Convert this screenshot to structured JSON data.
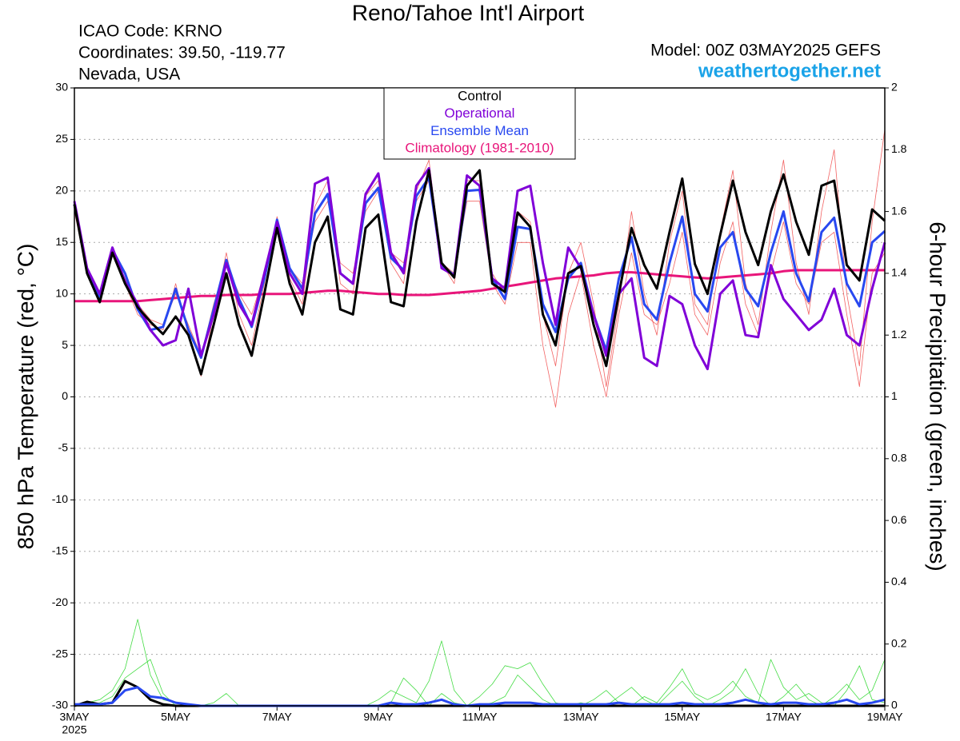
{
  "chart_data": {
    "type": "line",
    "title": "Reno/Tahoe Int'l Airport",
    "info_left": [
      "ICAO Code: KRNO",
      "Coordinates: 39.50, -119.77",
      "Nevada, USA"
    ],
    "model": "Model: 00Z 03MAY2025 GEFS",
    "source": "weathertogether.net",
    "ylabel": "850 hPa Temperature (red, °C)",
    "y2label": "6-hour Precipitation (green, inches)",
    "x_year": "2025",
    "x": [
      0,
      6,
      12,
      18,
      24,
      30,
      36,
      42,
      48,
      54,
      60,
      66,
      72,
      78,
      84,
      90,
      96,
      102,
      108,
      114,
      120,
      126,
      132,
      138,
      144,
      150,
      156,
      162,
      168,
      174,
      180,
      186,
      192,
      198,
      204,
      210,
      216,
      222,
      228,
      234,
      240,
      246,
      252,
      258,
      264,
      270,
      276,
      282,
      288,
      294,
      300,
      306,
      312,
      318,
      324,
      330,
      336,
      342,
      348,
      354,
      360,
      366,
      372,
      378,
      384
    ],
    "xlim": [
      0,
      384
    ],
    "xticks": [
      {
        "value": 0,
        "label": "3MAY"
      },
      {
        "value": 48,
        "label": "5MAY"
      },
      {
        "value": 96,
        "label": "7MAY"
      },
      {
        "value": 144,
        "label": "9MAY"
      },
      {
        "value": 192,
        "label": "11MAY"
      },
      {
        "value": 240,
        "label": "13MAY"
      },
      {
        "value": 288,
        "label": "15MAY"
      },
      {
        "value": 336,
        "label": "17MAY"
      },
      {
        "value": 384,
        "label": "19MAY"
      }
    ],
    "ylim": [
      -30,
      30
    ],
    "yticks": [
      -30,
      -25,
      -20,
      -15,
      -10,
      -5,
      0,
      5,
      10,
      15,
      20,
      25,
      30
    ],
    "y2lim": [
      0,
      2
    ],
    "y2ticks": [
      0,
      0.2,
      0.4,
      0.6,
      0.8,
      1,
      1.2,
      1.4,
      1.6,
      1.8,
      2
    ],
    "grid": true,
    "legend": "upper center",
    "member_color": "#f04848",
    "precip_member_color": "#30d830",
    "members": [
      [
        18,
        12,
        9.5,
        14,
        11,
        8,
        7,
        6.5,
        11,
        6,
        2,
        8,
        14,
        8,
        5,
        11,
        17.5,
        11.5,
        9,
        18.5,
        21,
        11,
        10,
        19.5,
        21,
        13,
        11,
        20,
        23,
        13,
        11,
        21,
        21,
        12,
        10,
        18,
        17,
        8,
        3,
        12,
        15,
        9,
        1,
        9,
        18,
        10,
        6,
        15,
        20,
        9,
        7,
        16,
        22,
        11,
        7,
        16,
        23,
        13,
        8,
        18,
        24,
        10,
        3,
        17,
        26
      ],
      [
        19,
        12.5,
        10,
        14.5,
        11.5,
        9,
        7.5,
        7,
        10,
        7,
        4,
        9,
        13,
        10,
        8,
        12,
        17,
        12.5,
        11,
        17,
        19,
        13,
        12,
        18,
        20,
        14,
        13,
        19,
        21,
        13,
        12,
        19,
        19,
        11,
        9,
        15,
        15,
        5,
        -1,
        8,
        12,
        5,
        0,
        8,
        14,
        8,
        7,
        11,
        16,
        8,
        6,
        13,
        17,
        9,
        6,
        12,
        17,
        11,
        9,
        15,
        16,
        8,
        1,
        12,
        14
      ]
    ],
    "precip_members": [
      [
        0,
        0.01,
        0.02,
        0.05,
        0.12,
        0.28,
        0.1,
        0.02,
        0.01,
        0,
        0,
        0,
        0,
        0,
        0,
        0,
        0,
        0,
        0,
        0,
        0,
        0,
        0,
        0,
        0.02,
        0.05,
        0.03,
        0.01,
        0.08,
        0.21,
        0.05,
        0,
        0,
        0.01,
        0.03,
        0.1,
        0.06,
        0.02,
        0,
        0,
        0.01,
        0,
        0,
        0.03,
        0.06,
        0.02,
        0,
        0.04,
        0.08,
        0.03,
        0,
        0.02,
        0.05,
        0.12,
        0.04,
        0,
        0.03,
        0.07,
        0.02,
        0,
        0.03,
        0.07,
        0.02,
        0.05,
        0.15
      ],
      [
        0,
        0,
        0.01,
        0.03,
        0.09,
        0.12,
        0.15,
        0.04,
        0,
        0,
        0,
        0.01,
        0.04,
        0,
        0,
        0,
        0,
        0,
        0,
        0,
        0,
        0,
        0,
        0,
        0,
        0.01,
        0.09,
        0.05,
        0,
        0.04,
        0.01,
        0,
        0.03,
        0.07,
        0.13,
        0.12,
        0.14,
        0.07,
        0.01,
        0,
        0,
        0.02,
        0.05,
        0.01,
        0,
        0.03,
        0.01,
        0.06,
        0.12,
        0.04,
        0.02,
        0.04,
        0.08,
        0.03,
        0.01,
        0.15,
        0.06,
        0.02,
        0.04,
        0.01,
        0,
        0.05,
        0.13,
        0.02,
        0.01
      ]
    ],
    "series": [
      {
        "name": "Control",
        "color": "#000000",
        "values": [
          18.7,
          12,
          9.2,
          14,
          11,
          8.7,
          7.3,
          6.1,
          7.8,
          6,
          2.2,
          7,
          12,
          7,
          4,
          10,
          16.4,
          11,
          8,
          15,
          17.5,
          8.5,
          8,
          16.4,
          17.7,
          9.2,
          8.8,
          17,
          22,
          13,
          11.6,
          20.5,
          22,
          11,
          10.2,
          17.9,
          16.5,
          8,
          5,
          12,
          12.7,
          7,
          3,
          10,
          16.4,
          12.8,
          10.5,
          16,
          21.2,
          12.9,
          10,
          15.7,
          21,
          16,
          12.8,
          18,
          21.6,
          17,
          13.8,
          20.5,
          21,
          12.8,
          11.3,
          18.2,
          17.1
        ]
      },
      {
        "name": "Operational",
        "color": "#8000d8",
        "values": [
          19,
          12.5,
          10,
          14.5,
          11.2,
          9,
          6.5,
          5,
          5.5,
          10.5,
          4,
          8,
          13,
          9,
          7,
          12,
          17,
          12,
          10,
          20.7,
          21.3,
          12,
          11,
          19.7,
          21.7,
          14,
          12,
          20.5,
          22.2,
          12.5,
          11.8,
          21.5,
          20.5,
          11.5,
          10.5,
          20,
          20.5,
          13,
          7,
          14.5,
          12.5,
          8,
          4,
          10,
          11.5,
          3.8,
          3,
          9.8,
          9,
          5,
          2.7,
          10,
          11.3,
          6,
          5.8,
          12.8,
          9.5,
          8,
          6.5,
          7.5,
          10.5,
          6,
          5,
          10.5,
          15
        ]
      },
      {
        "name": "Ensemble Mean",
        "color": "#2848f0",
        "values": [
          18.7,
          12.2,
          9.7,
          14.3,
          12,
          8.5,
          6.5,
          6.8,
          10.5,
          6.5,
          3.8,
          8.5,
          13.3,
          9.5,
          6.8,
          11.5,
          17.2,
          12.5,
          10.5,
          17.8,
          19.7,
          12,
          11,
          18.8,
          20.3,
          13.5,
          12.3,
          19.5,
          21.3,
          12.8,
          11.8,
          20,
          20.1,
          11.5,
          9.5,
          16.5,
          16.3,
          9,
          6.3,
          11.5,
          13,
          8,
          4.5,
          11.5,
          15.5,
          9,
          7.5,
          13,
          17.5,
          10,
          8.3,
          14.5,
          16,
          10.5,
          8.8,
          14,
          18,
          12,
          9.3,
          16,
          17.4,
          11,
          8.8,
          15,
          16.1
        ]
      },
      {
        "name": "Climatology (1981-2010)",
        "color": "#e8157a",
        "values": [
          9.3,
          9.3,
          9.3,
          9.3,
          9.3,
          9.3,
          9.4,
          9.5,
          9.6,
          9.7,
          9.8,
          9.8,
          9.9,
          9.9,
          9.9,
          10,
          10,
          10,
          10.1,
          10.2,
          10.3,
          10.3,
          10.2,
          10.1,
          10,
          10,
          9.9,
          9.9,
          9.9,
          10,
          10.1,
          10.2,
          10.3,
          10.5,
          10.7,
          10.9,
          11.1,
          11.3,
          11.5,
          11.6,
          11.7,
          11.8,
          12,
          12.1,
          12.1,
          12,
          11.9,
          11.8,
          11.7,
          11.6,
          11.5,
          11.6,
          11.7,
          11.8,
          11.9,
          12,
          12.2,
          12.3,
          12.3,
          12.3,
          12.3,
          12.3,
          12.3,
          12.3,
          12.3
        ]
      },
      {
        "axis": "y2",
        "color": "#000000",
        "values": [
          0,
          0.013,
          0.005,
          0.01,
          0.08,
          0.06,
          0.02,
          0.005,
          0,
          0,
          0,
          0,
          0,
          0,
          0,
          0,
          0,
          0,
          0,
          0,
          0,
          0,
          0,
          0,
          0,
          0,
          0,
          0,
          0,
          0,
          0,
          0,
          0,
          0,
          0,
          0,
          0,
          0,
          0,
          0,
          0,
          0,
          0,
          0,
          0,
          0,
          0,
          0,
          0,
          0,
          0,
          0,
          0,
          0,
          0,
          0,
          0,
          0,
          0,
          0,
          0,
          0,
          0,
          0,
          0
        ]
      },
      {
        "axis": "y2",
        "color": "#2848f0",
        "values": [
          0.005,
          0.005,
          0.005,
          0.01,
          0.05,
          0.06,
          0.03,
          0.025,
          0.01,
          0.005,
          0,
          0,
          0,
          0,
          0,
          0,
          0,
          0,
          0,
          0,
          0,
          0,
          0,
          0,
          0,
          0.01,
          0.005,
          0.005,
          0.01,
          0.02,
          0.005,
          0,
          0.005,
          0.005,
          0.01,
          0.01,
          0.01,
          0.005,
          0.005,
          0.005,
          0.005,
          0.005,
          0.005,
          0.01,
          0.005,
          0.005,
          0.005,
          0.005,
          0.01,
          0.005,
          0.005,
          0.005,
          0.01,
          0.02,
          0.01,
          0.005,
          0.01,
          0.01,
          0.005,
          0.005,
          0.01,
          0.02,
          0.005,
          0.01,
          0.02
        ]
      }
    ]
  }
}
